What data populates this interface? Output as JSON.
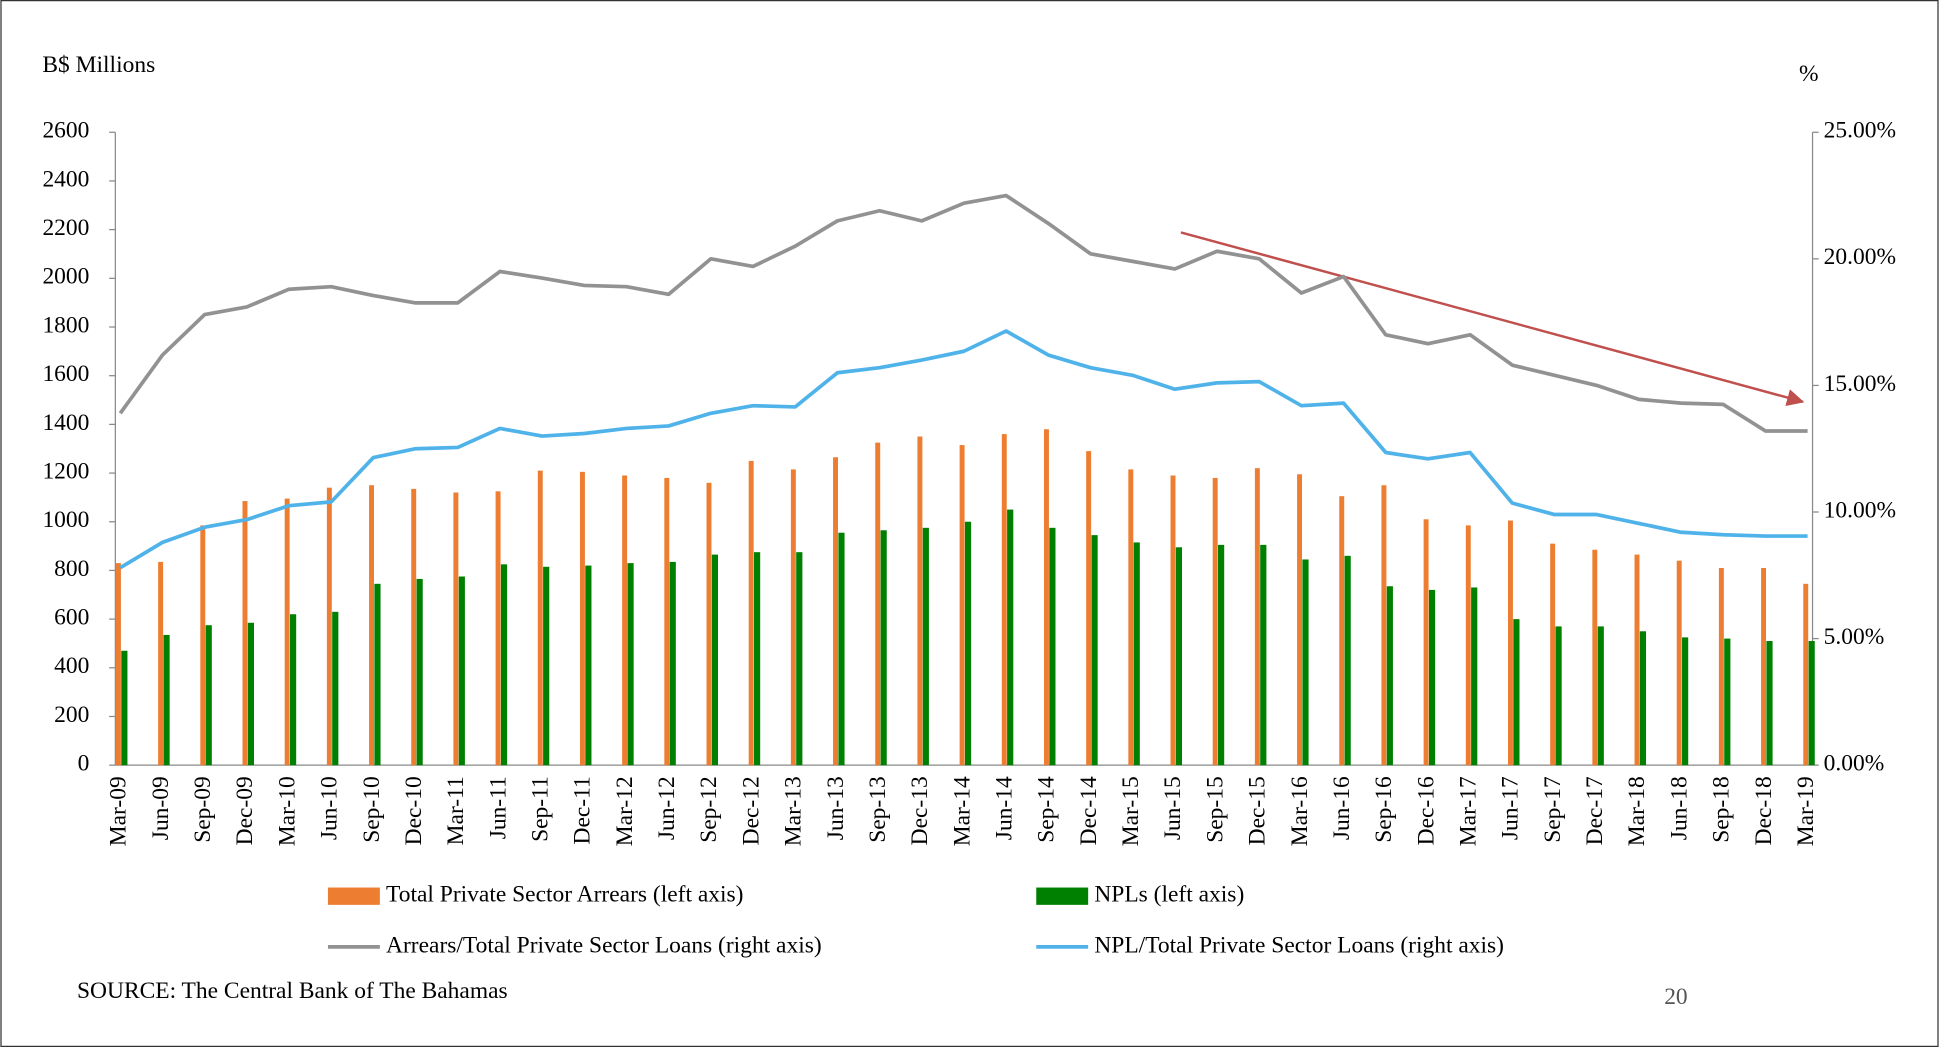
{
  "chart_data": {
    "type": "bar-line",
    "y_label": "B$ Millions",
    "y2_label": "%",
    "source": "SOURCE: The Central Bank of The Bahamas",
    "page_number": "20",
    "categories": [
      "Mar-09",
      "Jun-09",
      "Sep-09",
      "Dec-09",
      "Mar-10",
      "Jun-10",
      "Sep-10",
      "Dec-10",
      "Mar-11",
      "Jun-11",
      "Sep-11",
      "Dec-11",
      "Mar-12",
      "Jun-12",
      "Sep-12",
      "Dec-12",
      "Mar-13",
      "Jun-13",
      "Sep-13",
      "Dec-13",
      "Mar-14",
      "Jun-14",
      "Sep-14",
      "Dec-14",
      "Mar-15",
      "Jun-15",
      "Sep-15",
      "Dec-15",
      "Mar-16",
      "Jun-16",
      "Sep-16",
      "Dec-16",
      "Mar-17",
      "Jun-17",
      "Sep-17",
      "Dec-17",
      "Mar-18",
      "Jun-18",
      "Sep-18",
      "Dec-18",
      "Mar-19"
    ],
    "ylim": [
      0,
      2600
    ],
    "yticks": [
      0,
      200,
      400,
      600,
      800,
      1000,
      1200,
      1400,
      1600,
      1800,
      2000,
      2200,
      2400,
      2600
    ],
    "y2lim": [
      0,
      25
    ],
    "y2ticks": [
      {
        "value": 0,
        "label": "0.00%"
      },
      {
        "value": 5,
        "label": "5.00%"
      },
      {
        "value": 10,
        "label": "10.00%"
      },
      {
        "value": 15,
        "label": "15.00%"
      },
      {
        "value": 20,
        "label": "20.00%"
      },
      {
        "value": 25,
        "label": "25.00%"
      }
    ],
    "series": [
      {
        "name": "Total Private Sector Arrears (left axis)",
        "type": "bar",
        "color": "#ed7d31",
        "values": [
          830,
          835,
          985,
          1085,
          1095,
          1140,
          1150,
          1135,
          1120,
          1125,
          1210,
          1205,
          1190,
          1180,
          1160,
          1250,
          1215,
          1265,
          1325,
          1350,
          1315,
          1360,
          1380,
          1290,
          1215,
          1190,
          1180,
          1220,
          1195,
          1105,
          1150,
          1010,
          985,
          1005,
          910,
          885,
          865,
          840,
          810,
          810,
          745
        ]
      },
      {
        "name": "NPLs (left axis)",
        "type": "bar",
        "color": "#008000",
        "values": [
          470,
          535,
          575,
          585,
          620,
          630,
          745,
          765,
          775,
          825,
          815,
          820,
          830,
          835,
          865,
          875,
          875,
          955,
          965,
          975,
          1000,
          1050,
          975,
          945,
          915,
          895,
          905,
          905,
          845,
          860,
          735,
          720,
          730,
          600,
          570,
          570,
          550,
          525,
          520,
          510,
          510
        ]
      },
      {
        "name": "Arrears/Total Private Sector Loans (right axis)",
        "type": "line",
        "axis": "y2",
        "color": "#929292",
        "values": [
          13.9,
          16.2,
          17.8,
          18.1,
          18.8,
          18.9,
          18.55,
          18.26,
          18.26,
          19.5,
          19.24,
          18.95,
          18.9,
          18.6,
          20.0,
          19.7,
          20.5,
          21.5,
          21.9,
          21.5,
          22.2,
          22.5,
          21.4,
          20.2,
          19.9,
          19.6,
          20.3,
          20.0,
          18.65,
          19.3,
          17.0,
          16.65,
          17.0,
          15.8,
          15.4,
          15.0,
          14.45,
          14.3,
          14.25,
          13.2,
          13.2
        ]
      },
      {
        "name": "NPL/Total Private Sector Loans (right axis)",
        "type": "line",
        "axis": "y2",
        "color": "#4fb3ea",
        "values": [
          7.8,
          8.8,
          9.4,
          9.7,
          10.25,
          10.4,
          12.15,
          12.5,
          12.55,
          13.3,
          13.0,
          13.1,
          13.3,
          13.4,
          13.9,
          14.2,
          14.15,
          15.5,
          15.7,
          16.0,
          16.35,
          17.15,
          16.2,
          15.7,
          15.4,
          14.85,
          15.1,
          15.15,
          14.2,
          14.3,
          12.35,
          12.1,
          12.35,
          10.35,
          9.9,
          9.9,
          9.55,
          9.2,
          9.1,
          9.05,
          9.05
        ]
      }
    ]
  }
}
